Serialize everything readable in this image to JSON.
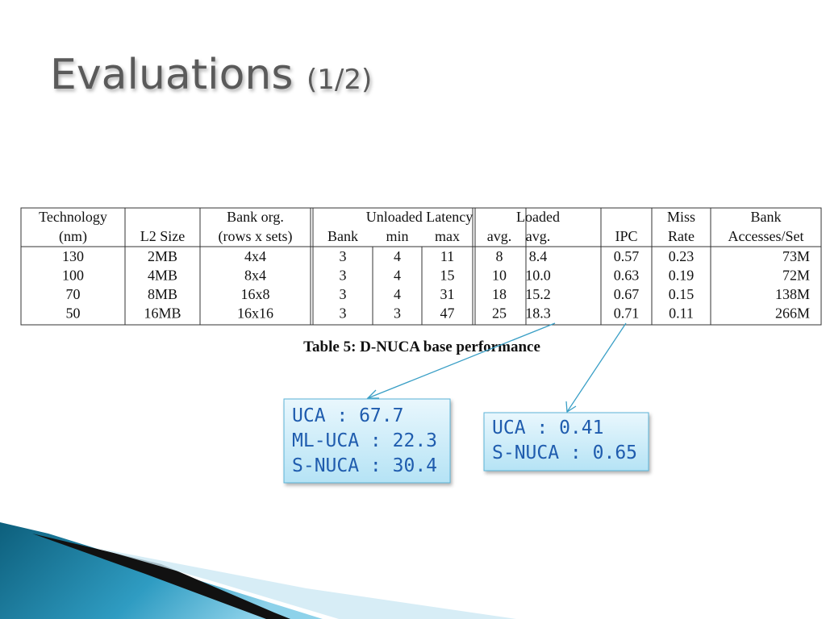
{
  "title": {
    "main": "Evaluations",
    "suffix": "(1/2)"
  },
  "table": {
    "group_header": "Unloaded Latency",
    "columns": [
      [
        "Technology",
        "(nm)"
      ],
      [
        "L2 Size"
      ],
      [
        "Bank org.",
        "(rows x sets)"
      ],
      [
        "Bank"
      ],
      [
        "min"
      ],
      [
        "max"
      ],
      [
        "avg."
      ],
      [
        "Loaded",
        "avg."
      ],
      [
        "IPC"
      ],
      [
        "Miss",
        "Rate"
      ],
      [
        "Bank",
        "Accesses/Set"
      ]
    ],
    "rows": [
      [
        "130",
        "2MB",
        "4x4",
        "3",
        "4",
        "11",
        "8",
        "8.4",
        "0.57",
        "0.23",
        "73M"
      ],
      [
        "100",
        "4MB",
        "8x4",
        "3",
        "4",
        "15",
        "10",
        "10.0",
        "0.63",
        "0.19",
        "72M"
      ],
      [
        "70",
        "8MB",
        "16x8",
        "3",
        "4",
        "31",
        "18",
        "15.2",
        "0.67",
        "0.15",
        "138M"
      ],
      [
        "50",
        "16MB",
        "16x16",
        "3",
        "3",
        "47",
        "25",
        "18.3",
        "0.71",
        "0.11",
        "266M"
      ]
    ],
    "caption": "Table 5: D-NUCA base performance"
  },
  "callouts": [
    {
      "lines": [
        "UCA : 67.7",
        "ML-UCA : 22.3",
        "S-NUCA : 30.4"
      ]
    },
    {
      "lines": [
        "UCA : 0.41",
        "S-NUCA : 0.65"
      ]
    }
  ]
}
